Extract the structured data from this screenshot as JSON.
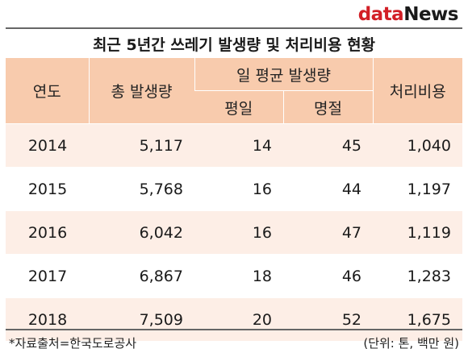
{
  "logo": {
    "part1": "data",
    "part2": "News"
  },
  "title": "최근 5년간 쓰레기 발생량 및 처리비용 현황",
  "headers": {
    "year": "연도",
    "total": "총 발생량",
    "daily": "일 평균 발생량",
    "weekday": "평일",
    "holiday": "명절",
    "cost": "처리비용"
  },
  "rows": [
    {
      "year": "2014",
      "total": "5,117",
      "weekday": "14",
      "holiday": "45",
      "cost": "1,040"
    },
    {
      "year": "2015",
      "total": "5,768",
      "weekday": "16",
      "holiday": "44",
      "cost": "1,197"
    },
    {
      "year": "2016",
      "total": "6,042",
      "weekday": "16",
      "holiday": "47",
      "cost": "1,119"
    },
    {
      "year": "2017",
      "total": "6,867",
      "weekday": "18",
      "holiday": "46",
      "cost": "1,283"
    },
    {
      "year": "2018",
      "total": "7,509",
      "weekday": "20",
      "holiday": "52",
      "cost": "1,675"
    }
  ],
  "footer": {
    "source": "*자료출처=한국도로공사",
    "unit": "(단위: 톤, 백만 원)"
  },
  "colors": {
    "header_bg": "#f8cbad",
    "row_tint": "#fdeee6",
    "logo_red": "#d21f26"
  }
}
